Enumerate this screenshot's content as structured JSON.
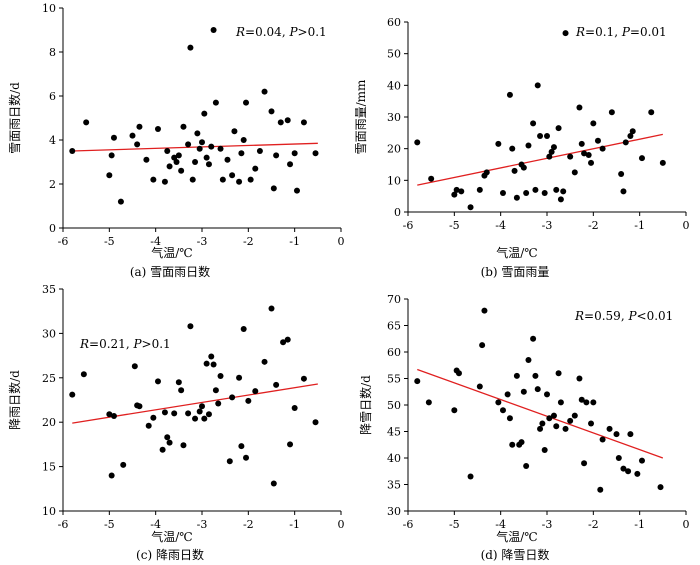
{
  "chart_data": [
    {
      "type": "scatter",
      "panel": "a",
      "caption": "(a) 雪面雨日数",
      "xlabel": "气温/℃",
      "ylabel": "雪面雨日数/d",
      "annotation": {
        "r": "0.04",
        "p": ">0.1"
      },
      "xlim": [
        -6,
        0
      ],
      "ylim": [
        0,
        10
      ],
      "xticks": [
        -6,
        -5,
        -4,
        -3,
        -2,
        -1,
        0
      ],
      "yticks": [
        0,
        2,
        4,
        6,
        8,
        10
      ],
      "trend": {
        "x": [
          -5.8,
          -0.5
        ],
        "y": [
          3.5,
          3.85
        ]
      },
      "points": [
        {
          "x": -5.8,
          "y": 3.5
        },
        {
          "x": -5.5,
          "y": 4.8
        },
        {
          "x": -5.0,
          "y": 2.4
        },
        {
          "x": -4.95,
          "y": 3.3
        },
        {
          "x": -4.9,
          "y": 4.1
        },
        {
          "x": -4.75,
          "y": 1.2
        },
        {
          "x": -4.5,
          "y": 4.2
        },
        {
          "x": -4.4,
          "y": 3.8
        },
        {
          "x": -4.35,
          "y": 4.6
        },
        {
          "x": -4.2,
          "y": 3.1
        },
        {
          "x": -4.05,
          "y": 2.2
        },
        {
          "x": -3.95,
          "y": 4.5
        },
        {
          "x": -3.8,
          "y": 2.1
        },
        {
          "x": -3.75,
          "y": 3.5
        },
        {
          "x": -3.7,
          "y": 2.8
        },
        {
          "x": -3.6,
          "y": 3.2
        },
        {
          "x": -3.55,
          "y": 3.0
        },
        {
          "x": -3.5,
          "y": 3.3
        },
        {
          "x": -3.45,
          "y": 2.6
        },
        {
          "x": -3.4,
          "y": 4.6
        },
        {
          "x": -3.3,
          "y": 3.8
        },
        {
          "x": -3.25,
          "y": 8.2
        },
        {
          "x": -3.2,
          "y": 2.2
        },
        {
          "x": -3.15,
          "y": 3.0
        },
        {
          "x": -3.1,
          "y": 4.3
        },
        {
          "x": -3.05,
          "y": 3.6
        },
        {
          "x": -3.0,
          "y": 3.9
        },
        {
          "x": -2.95,
          "y": 5.2
        },
        {
          "x": -2.9,
          "y": 3.2
        },
        {
          "x": -2.85,
          "y": 2.9
        },
        {
          "x": -2.8,
          "y": 3.7
        },
        {
          "x": -2.75,
          "y": 9.0
        },
        {
          "x": -2.7,
          "y": 5.7
        },
        {
          "x": -2.6,
          "y": 3.6
        },
        {
          "x": -2.55,
          "y": 2.2
        },
        {
          "x": -2.45,
          "y": 3.1
        },
        {
          "x": -2.35,
          "y": 2.4
        },
        {
          "x": -2.3,
          "y": 4.4
        },
        {
          "x": -2.2,
          "y": 2.1
        },
        {
          "x": -2.15,
          "y": 3.4
        },
        {
          "x": -2.1,
          "y": 4.0
        },
        {
          "x": -2.05,
          "y": 5.7
        },
        {
          "x": -1.95,
          "y": 2.2
        },
        {
          "x": -1.85,
          "y": 2.7
        },
        {
          "x": -1.75,
          "y": 3.5
        },
        {
          "x": -1.65,
          "y": 6.2
        },
        {
          "x": -1.5,
          "y": 5.3
        },
        {
          "x": -1.45,
          "y": 1.8
        },
        {
          "x": -1.4,
          "y": 3.3
        },
        {
          "x": -1.3,
          "y": 4.8
        },
        {
          "x": -1.15,
          "y": 4.9
        },
        {
          "x": -1.1,
          "y": 2.9
        },
        {
          "x": -1.0,
          "y": 3.4
        },
        {
          "x": -0.95,
          "y": 1.7
        },
        {
          "x": -0.8,
          "y": 4.8
        },
        {
          "x": -0.55,
          "y": 3.4
        }
      ]
    },
    {
      "type": "scatter",
      "panel": "b",
      "caption": "(b) 雪面雨量",
      "xlabel": "气温/℃",
      "ylabel": "雪面雨量/mm",
      "annotation": {
        "r": "0.1",
        "p": "=0.01"
      },
      "xlim": [
        -6,
        0
      ],
      "ylim": [
        0,
        60
      ],
      "xticks": [
        -6,
        -5,
        -4,
        -3,
        -2,
        -1,
        0
      ],
      "yticks": [
        0,
        10,
        20,
        30,
        40,
        50,
        60
      ],
      "trend": {
        "x": [
          -5.8,
          -0.5
        ],
        "y": [
          8.5,
          24.5
        ]
      },
      "points": [
        {
          "x": -5.8,
          "y": 22.0
        },
        {
          "x": -5.5,
          "y": 10.5
        },
        {
          "x": -5.0,
          "y": 5.5
        },
        {
          "x": -4.95,
          "y": 7.0
        },
        {
          "x": -4.85,
          "y": 6.5
        },
        {
          "x": -4.65,
          "y": 1.5
        },
        {
          "x": -4.45,
          "y": 7.0
        },
        {
          "x": -4.35,
          "y": 11.5
        },
        {
          "x": -4.3,
          "y": 12.5
        },
        {
          "x": -4.05,
          "y": 21.5
        },
        {
          "x": -3.95,
          "y": 6.0
        },
        {
          "x": -3.8,
          "y": 37.0
        },
        {
          "x": -3.75,
          "y": 20.0
        },
        {
          "x": -3.7,
          "y": 13.0
        },
        {
          "x": -3.65,
          "y": 4.5
        },
        {
          "x": -3.55,
          "y": 15.0
        },
        {
          "x": -3.5,
          "y": 14.0
        },
        {
          "x": -3.45,
          "y": 6.0
        },
        {
          "x": -3.4,
          "y": 21.0
        },
        {
          "x": -3.3,
          "y": 28.0
        },
        {
          "x": -3.25,
          "y": 7.0
        },
        {
          "x": -3.2,
          "y": 40.0
        },
        {
          "x": -3.15,
          "y": 24.0
        },
        {
          "x": -3.05,
          "y": 6.0
        },
        {
          "x": -3.0,
          "y": 24.0
        },
        {
          "x": -2.95,
          "y": 17.5
        },
        {
          "x": -2.9,
          "y": 19.0
        },
        {
          "x": -2.85,
          "y": 20.5
        },
        {
          "x": -2.8,
          "y": 7.0
        },
        {
          "x": -2.75,
          "y": 26.5
        },
        {
          "x": -2.7,
          "y": 4.0
        },
        {
          "x": -2.65,
          "y": 6.5
        },
        {
          "x": -2.6,
          "y": 56.5
        },
        {
          "x": -2.5,
          "y": 17.5
        },
        {
          "x": -2.4,
          "y": 12.5
        },
        {
          "x": -2.3,
          "y": 33.0
        },
        {
          "x": -2.25,
          "y": 21.5
        },
        {
          "x": -2.2,
          "y": 18.5
        },
        {
          "x": -2.1,
          "y": 18.0
        },
        {
          "x": -2.05,
          "y": 15.5
        },
        {
          "x": -2.0,
          "y": 28.0
        },
        {
          "x": -1.9,
          "y": 22.5
        },
        {
          "x": -1.8,
          "y": 20.0
        },
        {
          "x": -1.6,
          "y": 31.5
        },
        {
          "x": -1.4,
          "y": 12.0
        },
        {
          "x": -1.35,
          "y": 6.5
        },
        {
          "x": -1.3,
          "y": 22.0
        },
        {
          "x": -1.2,
          "y": 24.0
        },
        {
          "x": -1.15,
          "y": 25.5
        },
        {
          "x": -0.95,
          "y": 17.0
        },
        {
          "x": -0.75,
          "y": 31.5
        },
        {
          "x": -0.5,
          "y": 15.5
        }
      ]
    },
    {
      "type": "scatter",
      "panel": "c",
      "caption": "(c) 降雨日数",
      "xlabel": "气温/℃",
      "ylabel": "降雨日数/d",
      "annotation": {
        "r": "0.21",
        "p": ">0.1"
      },
      "xlim": [
        -6,
        0
      ],
      "ylim": [
        10,
        35
      ],
      "xticks": [
        -6,
        -5,
        -4,
        -3,
        -2,
        -1,
        0
      ],
      "yticks": [
        10,
        15,
        20,
        25,
        30,
        35
      ],
      "trend": {
        "x": [
          -5.8,
          -0.5
        ],
        "y": [
          19.9,
          24.3
        ]
      },
      "points": [
        {
          "x": -5.8,
          "y": 23.1
        },
        {
          "x": -5.55,
          "y": 25.4
        },
        {
          "x": -5.0,
          "y": 20.9
        },
        {
          "x": -4.95,
          "y": 14.0
        },
        {
          "x": -4.9,
          "y": 20.7
        },
        {
          "x": -4.7,
          "y": 15.2
        },
        {
          "x": -4.45,
          "y": 26.3
        },
        {
          "x": -4.4,
          "y": 21.9
        },
        {
          "x": -4.35,
          "y": 21.8
        },
        {
          "x": -4.15,
          "y": 19.6
        },
        {
          "x": -4.05,
          "y": 20.5
        },
        {
          "x": -3.95,
          "y": 24.6
        },
        {
          "x": -3.85,
          "y": 16.9
        },
        {
          "x": -3.8,
          "y": 21.1
        },
        {
          "x": -3.75,
          "y": 18.3
        },
        {
          "x": -3.7,
          "y": 17.7
        },
        {
          "x": -3.6,
          "y": 21.0
        },
        {
          "x": -3.5,
          "y": 24.5
        },
        {
          "x": -3.45,
          "y": 23.6
        },
        {
          "x": -3.4,
          "y": 17.4
        },
        {
          "x": -3.3,
          "y": 21.0
        },
        {
          "x": -3.25,
          "y": 30.8
        },
        {
          "x": -3.15,
          "y": 20.4
        },
        {
          "x": -3.05,
          "y": 21.2
        },
        {
          "x": -3.0,
          "y": 21.8
        },
        {
          "x": -2.95,
          "y": 20.4
        },
        {
          "x": -2.9,
          "y": 26.6
        },
        {
          "x": -2.85,
          "y": 20.9
        },
        {
          "x": -2.8,
          "y": 27.4
        },
        {
          "x": -2.75,
          "y": 26.5
        },
        {
          "x": -2.7,
          "y": 23.6
        },
        {
          "x": -2.65,
          "y": 22.1
        },
        {
          "x": -2.6,
          "y": 25.2
        },
        {
          "x": -2.4,
          "y": 15.6
        },
        {
          "x": -2.35,
          "y": 22.8
        },
        {
          "x": -2.2,
          "y": 25.0
        },
        {
          "x": -2.15,
          "y": 17.3
        },
        {
          "x": -2.1,
          "y": 30.5
        },
        {
          "x": -2.05,
          "y": 16.0
        },
        {
          "x": -2.0,
          "y": 22.4
        },
        {
          "x": -1.85,
          "y": 23.5
        },
        {
          "x": -1.65,
          "y": 26.8
        },
        {
          "x": -1.5,
          "y": 32.8
        },
        {
          "x": -1.45,
          "y": 13.1
        },
        {
          "x": -1.4,
          "y": 24.2
        },
        {
          "x": -1.25,
          "y": 29.0
        },
        {
          "x": -1.15,
          "y": 29.3
        },
        {
          "x": -1.1,
          "y": 17.5
        },
        {
          "x": -1.0,
          "y": 21.6
        },
        {
          "x": -0.8,
          "y": 24.9
        },
        {
          "x": -0.55,
          "y": 20.0
        }
      ]
    },
    {
      "type": "scatter",
      "panel": "d",
      "caption": "(d) 降雪日数",
      "xlabel": "气温/℃",
      "ylabel": "降雪日数/d",
      "annotation": {
        "r": "0.59",
        "p": "<0.01"
      },
      "xlim": [
        -6,
        0
      ],
      "ylim": [
        30,
        70
      ],
      "xticks": [
        -6,
        -5,
        -4,
        -3,
        -2,
        -1,
        0
      ],
      "yticks": [
        30,
        35,
        40,
        45,
        50,
        55,
        60,
        65,
        70
      ],
      "trend": {
        "x": [
          -5.8,
          -0.5
        ],
        "y": [
          56.7,
          40.0
        ]
      },
      "points": [
        {
          "x": -5.8,
          "y": 54.5
        },
        {
          "x": -5.55,
          "y": 50.5
        },
        {
          "x": -5.0,
          "y": 49.0
        },
        {
          "x": -4.95,
          "y": 56.5
        },
        {
          "x": -4.9,
          "y": 56.0
        },
        {
          "x": -4.65,
          "y": 36.5
        },
        {
          "x": -4.45,
          "y": 53.5
        },
        {
          "x": -4.4,
          "y": 61.3
        },
        {
          "x": -4.35,
          "y": 67.8
        },
        {
          "x": -4.05,
          "y": 50.5
        },
        {
          "x": -3.95,
          "y": 49.0
        },
        {
          "x": -3.85,
          "y": 52.0
        },
        {
          "x": -3.8,
          "y": 47.5
        },
        {
          "x": -3.75,
          "y": 42.5
        },
        {
          "x": -3.65,
          "y": 55.5
        },
        {
          "x": -3.6,
          "y": 42.5
        },
        {
          "x": -3.55,
          "y": 43.0
        },
        {
          "x": -3.5,
          "y": 52.5
        },
        {
          "x": -3.45,
          "y": 38.5
        },
        {
          "x": -3.4,
          "y": 58.5
        },
        {
          "x": -3.3,
          "y": 62.5
        },
        {
          "x": -3.25,
          "y": 55.5
        },
        {
          "x": -3.2,
          "y": 53.0
        },
        {
          "x": -3.15,
          "y": 45.5
        },
        {
          "x": -3.1,
          "y": 46.5
        },
        {
          "x": -3.05,
          "y": 41.5
        },
        {
          "x": -3.0,
          "y": 52.0
        },
        {
          "x": -2.95,
          "y": 47.5
        },
        {
          "x": -2.85,
          "y": 48.0
        },
        {
          "x": -2.8,
          "y": 46.0
        },
        {
          "x": -2.75,
          "y": 56.0
        },
        {
          "x": -2.7,
          "y": 50.5
        },
        {
          "x": -2.6,
          "y": 45.5
        },
        {
          "x": -2.5,
          "y": 47.0
        },
        {
          "x": -2.4,
          "y": 48.0
        },
        {
          "x": -2.3,
          "y": 55.0
        },
        {
          "x": -2.25,
          "y": 51.0
        },
        {
          "x": -2.2,
          "y": 39.0
        },
        {
          "x": -2.15,
          "y": 50.5
        },
        {
          "x": -2.05,
          "y": 46.5
        },
        {
          "x": -2.0,
          "y": 50.5
        },
        {
          "x": -1.85,
          "y": 34.0
        },
        {
          "x": -1.8,
          "y": 43.5
        },
        {
          "x": -1.65,
          "y": 45.5
        },
        {
          "x": -1.5,
          "y": 44.5
        },
        {
          "x": -1.45,
          "y": 40.0
        },
        {
          "x": -1.35,
          "y": 38.0
        },
        {
          "x": -1.25,
          "y": 37.5
        },
        {
          "x": -1.2,
          "y": 44.5
        },
        {
          "x": -1.05,
          "y": 37.0
        },
        {
          "x": -0.95,
          "y": 39.5
        },
        {
          "x": -0.55,
          "y": 34.5
        }
      ]
    }
  ]
}
